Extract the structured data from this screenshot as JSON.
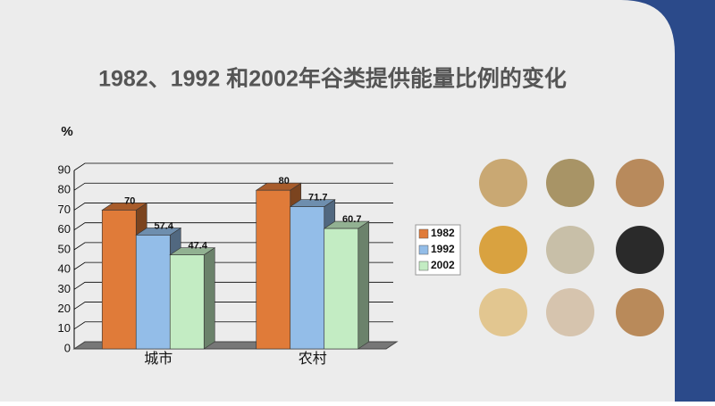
{
  "chart_data": {
    "type": "bar3d",
    "title": "1982、1992 和2002年谷类提供能量比例的变化",
    "y_label": "%",
    "categories": [
      "城市",
      "农村"
    ],
    "series": [
      {
        "name": "1982",
        "color": "#e07b39",
        "values": [
          70,
          80
        ]
      },
      {
        "name": "1992",
        "color": "#93bde8",
        "values": [
          57.4,
          71.7
        ]
      },
      {
        "name": "2002",
        "color": "#c3ecc3",
        "values": [
          47.4,
          60.7
        ]
      }
    ],
    "ylim": [
      0,
      90
    ],
    "yticks": [
      0,
      10,
      20,
      30,
      40,
      50,
      60,
      70,
      80,
      90
    ],
    "grid": true,
    "legend": "right"
  }
}
